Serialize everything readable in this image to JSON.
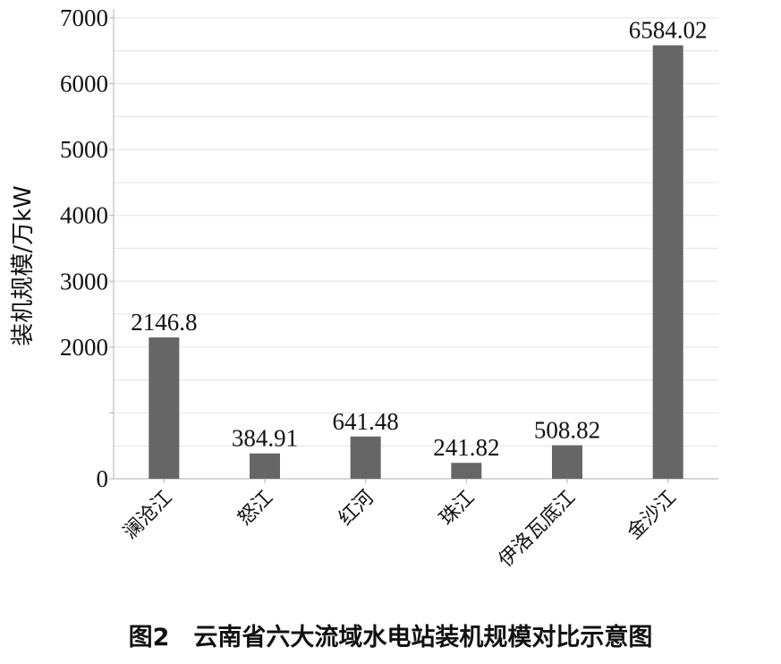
{
  "chart_data": {
    "type": "bar",
    "categories": [
      "澜沧江",
      "怒江",
      "红河",
      "珠江",
      "伊洛瓦底江",
      "金沙江"
    ],
    "values": [
      2146.8,
      384.91,
      641.48,
      241.82,
      508.82,
      6584.02
    ],
    "data_labels": [
      "2146.8",
      "384.91",
      "641.48",
      "241.82",
      "508.82",
      "6584.02"
    ],
    "ylabel": "装机规模/万kW",
    "xlabel": "",
    "ylim": [
      0,
      7000
    ],
    "yticks": [
      0,
      1000,
      2000,
      3000,
      4000,
      5000,
      6000,
      7000
    ],
    "ytick_labels": [
      "0",
      "",
      "2000",
      "3000",
      "4000",
      "5000",
      "6000",
      "7000"
    ],
    "grid": true,
    "bar_color": "#666666",
    "grid_color": "#e6e6e6"
  },
  "figure": {
    "caption": "图2　云南省六大流域水电站装机规模对比示意图"
  }
}
